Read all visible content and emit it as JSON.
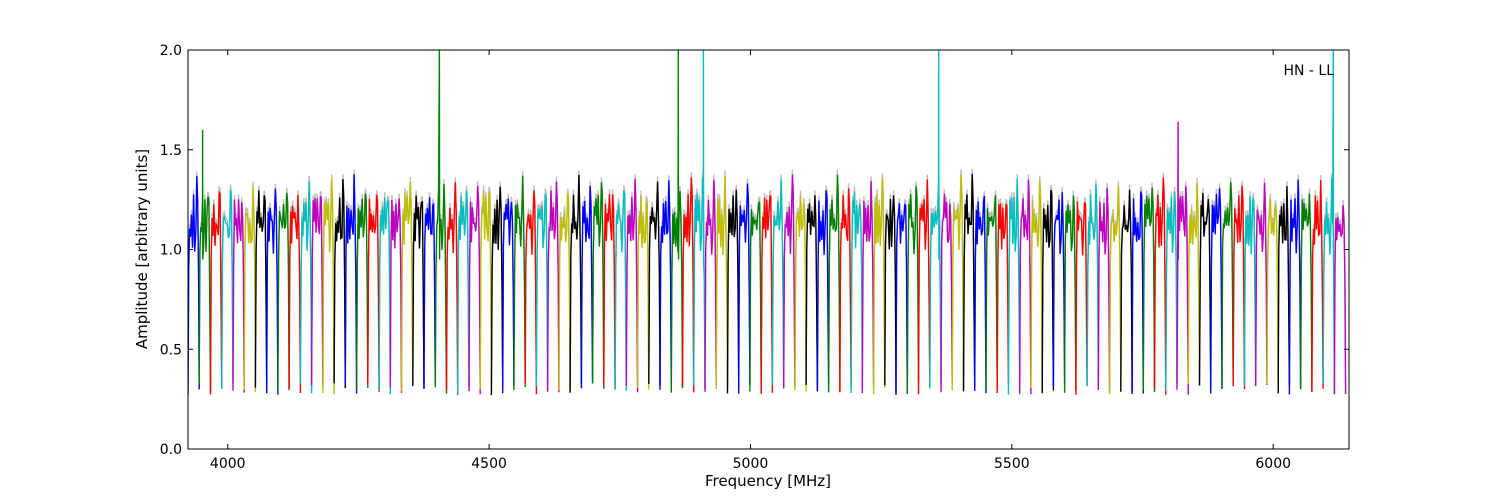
{
  "chart_data": {
    "type": "line",
    "title": "",
    "annotation": "HN - LL",
    "xlabel": "Frequency [MHz]",
    "ylabel": "Amplitude [arbitrary units]",
    "xlim": [
      3924,
      6145
    ],
    "ylim": [
      0.0,
      2.0
    ],
    "x_ticks": [
      4000,
      4500,
      5000,
      5500,
      6000
    ],
    "y_ticks": [
      0.0,
      0.5,
      1.0,
      1.5,
      2.0
    ],
    "x_tick_labels": [
      "4000",
      "4500",
      "5000",
      "5500",
      "6000"
    ],
    "y_tick_labels": [
      "0.0",
      "0.5",
      "1.0",
      "1.5",
      "2.0"
    ],
    "grid": false,
    "legend": "none",
    "background_trace_color": "#bfbfbf",
    "color_cycle": [
      "#0000ff",
      "#008000",
      "#ff0000",
      "#00bfbf",
      "#bf00bf",
      "#bfbf00",
      "#000000"
    ],
    "channel_width_mhz": 21.5,
    "channel_count": 103,
    "profile_shape": {
      "x_offset_fraction": [
        0,
        0.06,
        0.14,
        0.22,
        0.3,
        0.4,
        0.5,
        0.6,
        0.7,
        0.78,
        0.86,
        0.94,
        1.0
      ],
      "amplitude": [
        0.3,
        0.95,
        1.18,
        1.1,
        1.22,
        1.08,
        1.2,
        1.05,
        1.12,
        1.3,
        1.2,
        0.8,
        0.3
      ]
    },
    "peaks": [
      {
        "x": 3952,
        "y": 1.6
      },
      {
        "x": 4405,
        "y": 2.0
      },
      {
        "x": 4862,
        "y": 2.0
      },
      {
        "x": 4910,
        "y": 2.0
      },
      {
        "x": 5360,
        "y": 2.0
      },
      {
        "x": 5818,
        "y": 1.64
      },
      {
        "x": 6115,
        "y": 2.0
      }
    ]
  }
}
